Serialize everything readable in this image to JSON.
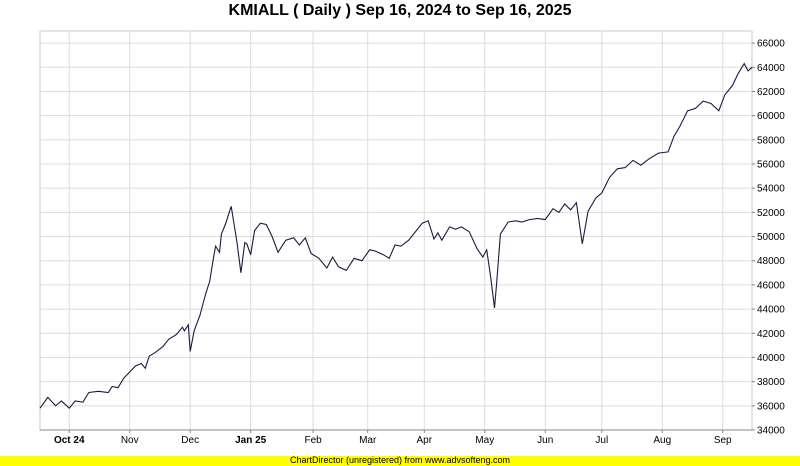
{
  "footer": {
    "text": "ChartDirector (unregistered) from www.advsofteng.com"
  },
  "chart_data": {
    "type": "line",
    "title": "KMIALL ( Daily ) Sep 16, 2024 to Sep 16, 2025",
    "xlabel": "",
    "ylabel": "",
    "ylim": [
      34000,
      67000
    ],
    "y_ticks": [
      34000,
      36000,
      38000,
      40000,
      42000,
      44000,
      46000,
      48000,
      50000,
      52000,
      54000,
      56000,
      58000,
      60000,
      62000,
      64000,
      66000
    ],
    "y_axis_position": "right",
    "grid": true,
    "x_range": [
      "2024-09-16",
      "2025-09-16"
    ],
    "x_ticks": [
      {
        "label": "Oct 24",
        "date": "2024-10-01",
        "bold": true
      },
      {
        "label": "Nov",
        "date": "2024-11-01",
        "bold": false
      },
      {
        "label": "Dec",
        "date": "2024-12-02",
        "bold": false
      },
      {
        "label": "Jan 25",
        "date": "2025-01-02",
        "bold": true
      },
      {
        "label": "Feb",
        "date": "2025-02-03",
        "bold": false
      },
      {
        "label": "Mar",
        "date": "2025-03-03",
        "bold": false
      },
      {
        "label": "Apr",
        "date": "2025-04-01",
        "bold": false
      },
      {
        "label": "May",
        "date": "2025-05-02",
        "bold": false
      },
      {
        "label": "Jun",
        "date": "2025-06-02",
        "bold": false
      },
      {
        "label": "Jul",
        "date": "2025-07-01",
        "bold": false
      },
      {
        "label": "Aug",
        "date": "2025-08-01",
        "bold": false
      },
      {
        "label": "Sep",
        "date": "2025-09-01",
        "bold": false
      }
    ],
    "line_color": "#1a1a40",
    "series": [
      {
        "values": [
          [
            "2024-09-16",
            35800
          ],
          [
            "2024-09-20",
            36700
          ],
          [
            "2024-09-24",
            36000
          ],
          [
            "2024-09-27",
            36400
          ],
          [
            "2024-10-01",
            35800
          ],
          [
            "2024-10-04",
            36400
          ],
          [
            "2024-10-08",
            36300
          ],
          [
            "2024-10-11",
            37100
          ],
          [
            "2024-10-16",
            37200
          ],
          [
            "2024-10-21",
            37100
          ],
          [
            "2024-10-23",
            37600
          ],
          [
            "2024-10-26",
            37500
          ],
          [
            "2024-10-29",
            38300
          ],
          [
            "2024-11-01",
            38800
          ],
          [
            "2024-11-04",
            39300
          ],
          [
            "2024-11-07",
            39500
          ],
          [
            "2024-11-09",
            39100
          ],
          [
            "2024-11-11",
            40100
          ],
          [
            "2024-11-14",
            40400
          ],
          [
            "2024-11-18",
            40900
          ],
          [
            "2024-11-21",
            41500
          ],
          [
            "2024-11-25",
            41900
          ],
          [
            "2024-11-28",
            42500
          ],
          [
            "2024-11-29",
            42200
          ],
          [
            "2024-12-01",
            42700
          ],
          [
            "2024-12-02",
            40500
          ],
          [
            "2024-12-04",
            42200
          ],
          [
            "2024-12-07",
            43500
          ],
          [
            "2024-12-10",
            45300
          ],
          [
            "2024-12-12",
            46300
          ],
          [
            "2024-12-14",
            48300
          ],
          [
            "2024-12-15",
            49200
          ],
          [
            "2024-12-17",
            48700
          ],
          [
            "2024-12-18",
            50200
          ],
          [
            "2024-12-20",
            51000
          ],
          [
            "2024-12-23",
            52500
          ],
          [
            "2024-12-26",
            49500
          ],
          [
            "2024-12-28",
            47000
          ],
          [
            "2024-12-30",
            49500
          ],
          [
            "2024-12-31",
            49400
          ],
          [
            "2025-01-02",
            48500
          ],
          [
            "2025-01-04",
            50500
          ],
          [
            "2025-01-07",
            51100
          ],
          [
            "2025-01-10",
            51000
          ],
          [
            "2025-01-13",
            50000
          ],
          [
            "2025-01-16",
            48700
          ],
          [
            "2025-01-20",
            49700
          ],
          [
            "2025-01-24",
            49900
          ],
          [
            "2025-01-27",
            49300
          ],
          [
            "2025-01-30",
            49900
          ],
          [
            "2025-02-02",
            48600
          ],
          [
            "2025-02-06",
            48200
          ],
          [
            "2025-02-10",
            47400
          ],
          [
            "2025-02-13",
            48300
          ],
          [
            "2025-02-16",
            47500
          ],
          [
            "2025-02-20",
            47200
          ],
          [
            "2025-02-24",
            48200
          ],
          [
            "2025-02-28",
            48000
          ],
          [
            "2025-03-04",
            48900
          ],
          [
            "2025-03-07",
            48800
          ],
          [
            "2025-03-11",
            48500
          ],
          [
            "2025-03-14",
            48200
          ],
          [
            "2025-03-17",
            49300
          ],
          [
            "2025-03-20",
            49200
          ],
          [
            "2025-03-24",
            49700
          ],
          [
            "2025-03-27",
            50300
          ],
          [
            "2025-03-31",
            51100
          ],
          [
            "2025-04-03",
            51300
          ],
          [
            "2025-04-06",
            49800
          ],
          [
            "2025-04-08",
            50300
          ],
          [
            "2025-04-10",
            49700
          ],
          [
            "2025-04-14",
            50800
          ],
          [
            "2025-04-17",
            50600
          ],
          [
            "2025-04-20",
            50800
          ],
          [
            "2025-04-24",
            50400
          ],
          [
            "2025-04-28",
            49000
          ],
          [
            "2025-05-01",
            48300
          ],
          [
            "2025-05-03",
            48900
          ],
          [
            "2025-05-05",
            46700
          ],
          [
            "2025-05-07",
            44100
          ],
          [
            "2025-05-08",
            46000
          ],
          [
            "2025-05-10",
            50200
          ],
          [
            "2025-05-14",
            51200
          ],
          [
            "2025-05-18",
            51300
          ],
          [
            "2025-05-21",
            51200
          ],
          [
            "2025-05-25",
            51400
          ],
          [
            "2025-05-29",
            51500
          ],
          [
            "2025-06-02",
            51400
          ],
          [
            "2025-06-06",
            52300
          ],
          [
            "2025-06-09",
            52000
          ],
          [
            "2025-06-12",
            52700
          ],
          [
            "2025-06-15",
            52200
          ],
          [
            "2025-06-18",
            52800
          ],
          [
            "2025-06-21",
            49400
          ],
          [
            "2025-06-24",
            52100
          ],
          [
            "2025-06-28",
            53200
          ],
          [
            "2025-07-01",
            53600
          ],
          [
            "2025-07-05",
            54900
          ],
          [
            "2025-07-09",
            55600
          ],
          [
            "2025-07-13",
            55700
          ],
          [
            "2025-07-17",
            56300
          ],
          [
            "2025-07-21",
            55900
          ],
          [
            "2025-07-25",
            56400
          ],
          [
            "2025-07-30",
            56900
          ],
          [
            "2025-08-04",
            57000
          ],
          [
            "2025-08-07",
            58300
          ],
          [
            "2025-08-10",
            59100
          ],
          [
            "2025-08-14",
            60400
          ],
          [
            "2025-08-18",
            60600
          ],
          [
            "2025-08-22",
            61200
          ],
          [
            "2025-08-26",
            61000
          ],
          [
            "2025-08-30",
            60400
          ],
          [
            "2025-09-02",
            61700
          ],
          [
            "2025-09-06",
            62500
          ],
          [
            "2025-09-09",
            63500
          ],
          [
            "2025-09-12",
            64300
          ],
          [
            "2025-09-14",
            63700
          ],
          [
            "2025-09-16",
            64000
          ]
        ]
      }
    ]
  }
}
